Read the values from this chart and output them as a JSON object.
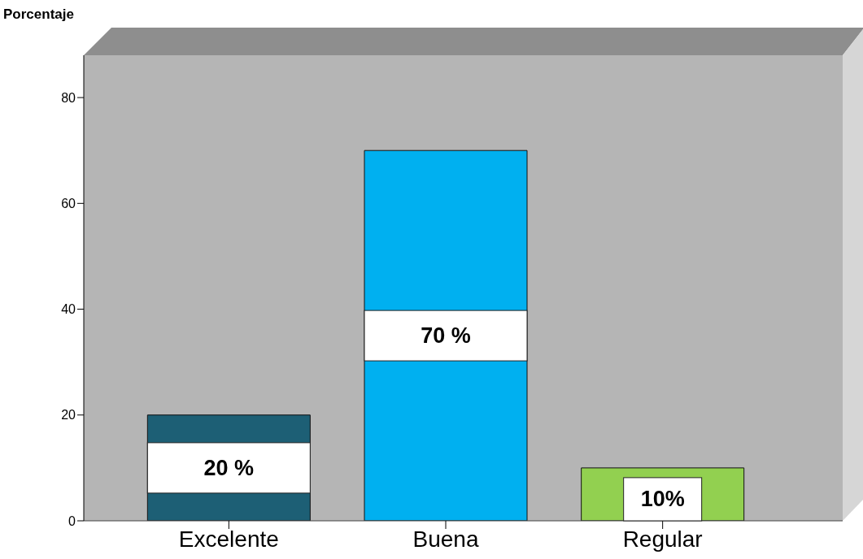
{
  "chart_data": {
    "type": "bar",
    "ylabel": "Porcentaje",
    "categories": [
      "Excelente",
      "Buena",
      "Regular"
    ],
    "values": [
      20,
      70,
      10
    ],
    "colors": [
      "#1d5f75",
      "#00b0f0",
      "#92d050"
    ],
    "value_labels": [
      "20 %",
      "70 %",
      "10%"
    ],
    "ylim": [
      0,
      88
    ],
    "yticks": [
      0,
      20,
      40,
      60,
      80
    ]
  }
}
